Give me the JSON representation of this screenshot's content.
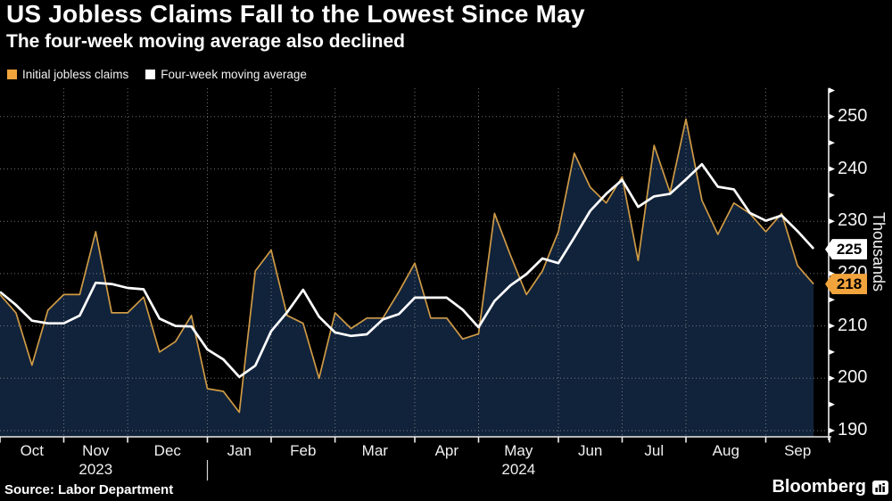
{
  "header": {
    "title": "US Jobless Claims Fall to the Lowest Since May",
    "subtitle": "The four-week moving average also declined"
  },
  "legend": [
    {
      "label": "Initial jobless claims",
      "color": "#f2a43c"
    },
    {
      "label": "Four-week moving average",
      "color": "#ffffff"
    }
  ],
  "chart_data": {
    "type": "area+line",
    "unit": "thousands of claims",
    "ylabel": "Thousands",
    "x_range": "Weekly, Oct 2023 - Sep 2024",
    "ylim": [
      188,
      255
    ],
    "yticks_major": [
      250,
      240,
      230,
      220,
      210,
      200,
      190
    ],
    "ytick_minor_step": 5,
    "grid": "dotted",
    "months": [
      {
        "label": "Oct",
        "weeks": 4
      },
      {
        "label": "Nov",
        "weeks": 4
      },
      {
        "label": "Dec",
        "weeks": 5
      },
      {
        "label": "Jan",
        "weeks": 4
      },
      {
        "label": "Feb",
        "weeks": 4
      },
      {
        "label": "Mar",
        "weeks": 5
      },
      {
        "label": "Apr",
        "weeks": 4
      },
      {
        "label": "May",
        "weeks": 5
      },
      {
        "label": "Jun",
        "weeks": 4
      },
      {
        "label": "Jul",
        "weeks": 4
      },
      {
        "label": "Aug",
        "weeks": 5
      },
      {
        "label": "Sep",
        "weeks": 4
      }
    ],
    "years": [
      {
        "label": "2023",
        "month_index": 1
      },
      {
        "label": "2024",
        "month_index": 7
      }
    ],
    "series": [
      {
        "name": "Initial jobless claims",
        "style": "area",
        "line_color": "#cf9a45",
        "fill_color": "#11233b",
        "values": [
          216,
          212.5,
          202.5,
          213,
          216,
          216,
          228,
          212.5,
          212.5,
          215.5,
          205,
          207,
          212,
          198,
          197.5,
          193.5,
          220.5,
          224.5,
          212,
          210.5,
          200,
          212.5,
          209.5,
          211.5,
          211.5,
          216.5,
          222,
          211.5,
          211.5,
          207.5,
          208.5,
          231.5,
          223.5,
          216,
          220.5,
          228,
          243,
          236.5,
          233.5,
          238.5,
          222.5,
          244.5,
          235.5,
          249.5,
          234,
          227.5,
          233.5,
          231.5,
          228,
          231.5,
          221.5,
          218
        ]
      },
      {
        "name": "Four-week moving average",
        "style": "line",
        "line_color": "#ffffff",
        "values": [
          216.5,
          214,
          211,
          210.5,
          210.5,
          212,
          218.25,
          218,
          217.25,
          217,
          211.4,
          210,
          209.9,
          205.5,
          203.6,
          200.25,
          202.4,
          209,
          212.6,
          216.9,
          211.75,
          208.75,
          208.1,
          208.4,
          211.25,
          212.25,
          215.4,
          215.4,
          215.4,
          213.1,
          209.75,
          214.75,
          217.75,
          219.9,
          222.9,
          222,
          226.9,
          232,
          235.25,
          237.9,
          232.75,
          234.75,
          235.25,
          238,
          240.9,
          236.6,
          236.1,
          231.6,
          230.1,
          231.1,
          228.1,
          224.75
        ]
      }
    ],
    "end_labels": [
      {
        "value": "225",
        "series": "Four-week moving average",
        "bg": "#ffffff"
      },
      {
        "value": "218",
        "series": "Initial jobless claims",
        "bg": "#f2a43c"
      }
    ]
  },
  "footer": {
    "source": "Source: Labor Department",
    "brand": "Bloomberg"
  }
}
